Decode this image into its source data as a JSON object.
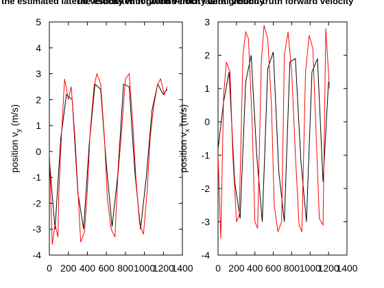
{
  "chart_data": [
    {
      "type": "line",
      "title": "the estimated lateral velocity with ground-truth lateral velocity",
      "xlabel": "",
      "ylabel_main": "position v",
      "ylabel_sub": "y",
      "ylabel_unit": "  (m/s)",
      "xlim": [
        0,
        1400
      ],
      "ylim": [
        -4,
        5
      ],
      "xticks": [
        "0",
        "200",
        "400",
        "600",
        "800",
        "1000",
        "1200",
        "1400"
      ],
      "yticks": [
        "-4",
        "-3",
        "-2",
        "-1",
        "0",
        "1",
        "2",
        "3",
        "4",
        "5"
      ],
      "grid": false,
      "series": [
        {
          "color": "#ff0000",
          "x": [
            0,
            30,
            60,
            90,
            100,
            130,
            160,
            200,
            230,
            270,
            300,
            330,
            370,
            400,
            430,
            470,
            500,
            540,
            580,
            610,
            650,
            690,
            720,
            760,
            800,
            840,
            880,
            910,
            950,
            990,
            1030,
            1060,
            1100,
            1140,
            1170,
            1210,
            1240
          ],
          "y": [
            0,
            -3.6,
            -2.8,
            -3.3,
            -1.5,
            0.8,
            2.8,
            2.0,
            2.5,
            0.5,
            -1.5,
            -3.5,
            -3.1,
            -1.5,
            0.8,
            2.5,
            3.0,
            2.6,
            0.5,
            -1.8,
            -3.0,
            -3.3,
            -1.0,
            0.8,
            2.8,
            3.0,
            1.0,
            -1.0,
            -2.8,
            -3.2,
            -1.5,
            0.5,
            1.8,
            2.6,
            2.8,
            2.2,
            2.5
          ]
        },
        {
          "color": "#000000",
          "x": [
            0,
            60,
            120,
            180,
            240,
            300,
            360,
            420,
            480,
            540,
            600,
            660,
            720,
            780,
            840,
            900,
            960,
            1020,
            1080,
            1140,
            1200,
            1240
          ],
          "y": [
            -0.3,
            -3.0,
            0.5,
            2.2,
            2.0,
            -1.6,
            -3.0,
            0.3,
            2.6,
            2.4,
            -0.5,
            -2.9,
            -0.9,
            2.6,
            2.5,
            -0.8,
            -3.0,
            -1.0,
            1.6,
            2.6,
            2.2,
            2.4
          ]
        }
      ]
    },
    {
      "type": "line",
      "title": "the estimated forward velocity with ground-truth forward velocity",
      "xlabel": "",
      "ylabel_main": "position v",
      "ylabel_sub": "x",
      "ylabel_unit": "  (m/s)",
      "xlim": [
        0,
        1400
      ],
      "ylim": [
        -4,
        3
      ],
      "xticks": [
        "0",
        "200",
        "400",
        "600",
        "800",
        "1000",
        "1200",
        "1400"
      ],
      "yticks": [
        "-4",
        "-3",
        "-2",
        "-1",
        "0",
        "1",
        "2",
        "3"
      ],
      "grid": false,
      "series": [
        {
          "color": "#ff0000",
          "x": [
            0,
            30,
            60,
            90,
            130,
            160,
            200,
            230,
            270,
            300,
            330,
            370,
            400,
            430,
            470,
            500,
            540,
            580,
            610,
            650,
            690,
            720,
            760,
            800,
            840,
            880,
            910,
            950,
            990,
            1030,
            1060,
            1100,
            1140,
            1170,
            1210
          ],
          "y": [
            -1.0,
            -3.5,
            0.8,
            1.8,
            1.5,
            -1.0,
            -3.0,
            -2.8,
            2.0,
            2.7,
            2.5,
            0.0,
            -3.0,
            -3.2,
            1.8,
            2.9,
            2.5,
            0.5,
            -2.5,
            -3.3,
            -3.0,
            2.0,
            2.7,
            1.5,
            -1.0,
            -3.1,
            -3.3,
            1.5,
            2.6,
            2.2,
            0.0,
            -2.9,
            -3.1,
            2.8,
            1.0
          ]
        },
        {
          "color": "#000000",
          "x": [
            0,
            60,
            120,
            180,
            240,
            300,
            360,
            420,
            480,
            540,
            600,
            660,
            720,
            780,
            840,
            900,
            960,
            1020,
            1080,
            1140,
            1200
          ],
          "y": [
            -0.8,
            0.6,
            1.5,
            -1.8,
            -2.9,
            1.2,
            2.0,
            -1.0,
            -3.0,
            1.6,
            2.1,
            -1.5,
            -3.0,
            1.8,
            1.9,
            -1.2,
            -3.0,
            1.5,
            1.9,
            -1.8,
            1.2
          ]
        }
      ]
    }
  ]
}
